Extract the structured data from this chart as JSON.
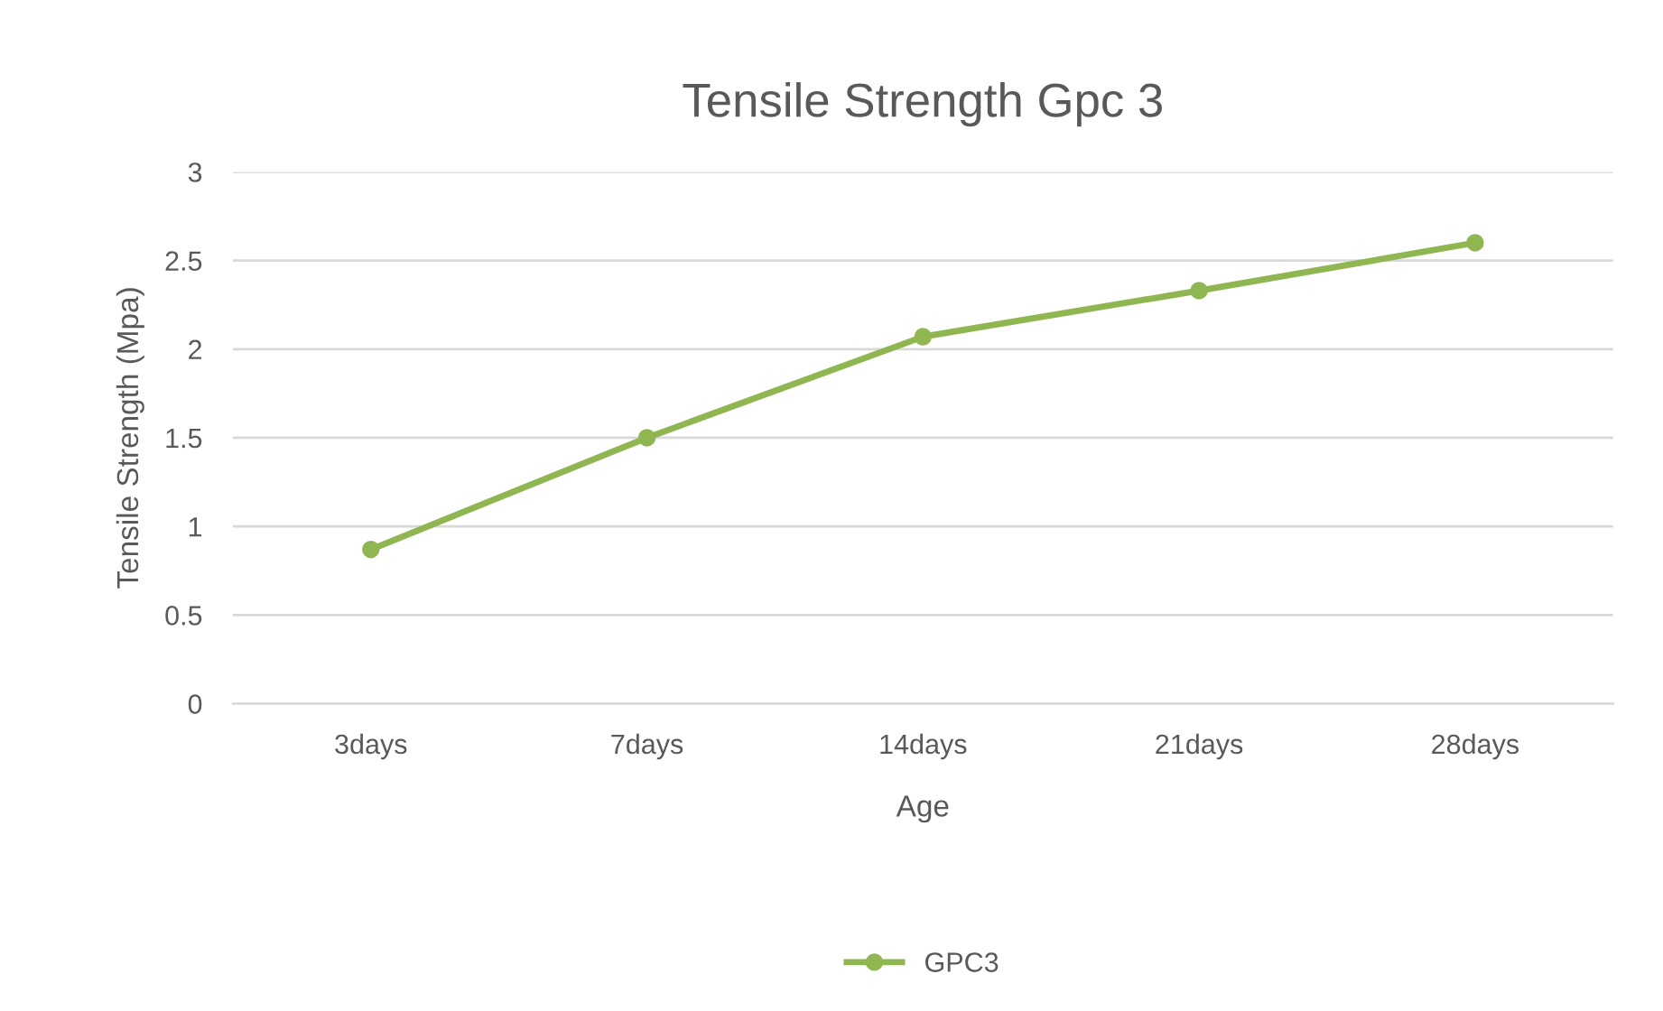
{
  "chart_data": {
    "type": "line",
    "title": "Tensile Strength Gpc 3",
    "xlabel": "Age",
    "ylabel": "Tensile Strength (Mpa)",
    "categories": [
      "3days",
      "7days",
      "14days",
      "21days",
      "28days"
    ],
    "series": [
      {
        "name": "GPC3",
        "color": "#8fb651",
        "values": [
          0.87,
          1.5,
          2.07,
          2.33,
          2.6
        ]
      }
    ],
    "ylim": [
      0,
      3
    ],
    "yticks": [
      0,
      0.5,
      1,
      1.5,
      2,
      2.5,
      3
    ],
    "grid": "y",
    "legend": "bottom",
    "marker": "circle",
    "line_style": "solid"
  }
}
